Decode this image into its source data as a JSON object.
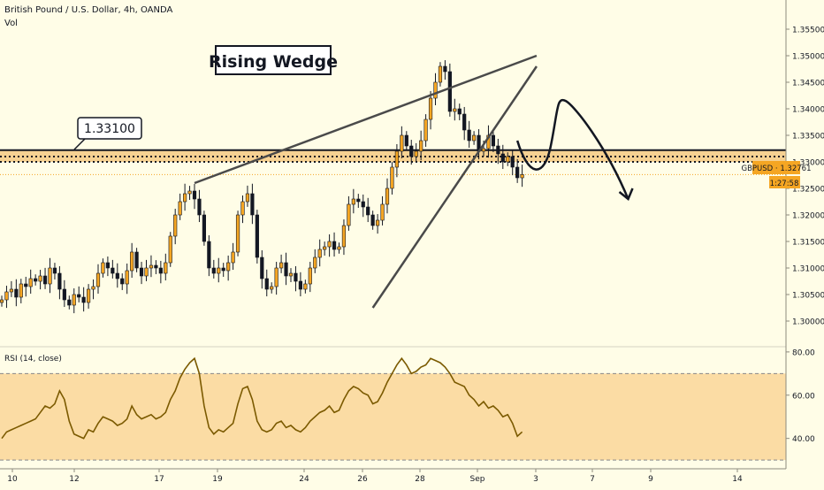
{
  "header": {
    "symbol_line": "British Pound / U.S. Dollar, 4h, OANDA",
    "vol_label": "Vol"
  },
  "annotations": {
    "pattern_title": "Rising Wedge",
    "level_callout": "1.33100"
  },
  "price_tag": {
    "label": "GBPUSD · 1.32761",
    "countdown": "1:27:58"
  },
  "rsi_panel": {
    "label": "RSI (14, close)"
  },
  "colors": {
    "background": "#fffde7",
    "up_candle": "#f5a623",
    "down_candle": "#131722",
    "line": "#4a4a4a",
    "zone": "#f5c983",
    "rsi_line": "#7b5a00",
    "rsi_band": "#fbd89c",
    "price_tag": "#f5a623"
  },
  "chart_data": [
    {
      "type": "candlestick",
      "title": "British Pound / U.S. Dollar, 4h, OANDA",
      "symbol": "GBPUSD",
      "last_price": 1.32761,
      "y_ticks": [
        1.355,
        1.35,
        1.345,
        1.34,
        1.335,
        1.33,
        1.325,
        1.32,
        1.315,
        1.31,
        1.305,
        1.3
      ],
      "y_tick_labels": [
        "1.35500",
        "1.35000",
        "1.34500",
        "1.34000",
        "1.33500",
        "1.33000",
        "1.32500",
        "1.32000",
        "1.31500",
        "1.31000",
        "1.30500",
        "1.30000"
      ],
      "ylim": [
        1.2955,
        1.3605
      ],
      "x_tick_labels": [
        "10",
        "12",
        "17",
        "19",
        "24",
        "26",
        "28",
        "Sep",
        "3",
        "7",
        "9",
        "14"
      ],
      "closes": [
        1.304,
        1.3055,
        1.306,
        1.3045,
        1.307,
        1.3065,
        1.308,
        1.3075,
        1.3085,
        1.307,
        1.31,
        1.309,
        1.306,
        1.304,
        1.303,
        1.305,
        1.3045,
        1.3035,
        1.306,
        1.3065,
        1.309,
        1.311,
        1.31,
        1.309,
        1.308,
        1.307,
        1.3095,
        1.313,
        1.31,
        1.3085,
        1.31,
        1.3105,
        1.31,
        1.309,
        1.311,
        1.316,
        1.32,
        1.3225,
        1.324,
        1.3245,
        1.323,
        1.32,
        1.315,
        1.31,
        1.309,
        1.31,
        1.3095,
        1.311,
        1.313,
        1.32,
        1.3225,
        1.324,
        1.32,
        1.312,
        1.308,
        1.306,
        1.3065,
        1.31,
        1.311,
        1.3085,
        1.309,
        1.3075,
        1.306,
        1.307,
        1.31,
        1.312,
        1.3135,
        1.314,
        1.315,
        1.3135,
        1.314,
        1.318,
        1.322,
        1.323,
        1.3225,
        1.3215,
        1.32,
        1.318,
        1.319,
        1.322,
        1.325,
        1.329,
        1.332,
        1.335,
        1.333,
        1.331,
        1.332,
        1.334,
        1.338,
        1.342,
        1.345,
        1.348,
        1.347,
        1.3395,
        1.34,
        1.339,
        1.336,
        1.334,
        1.335,
        1.332,
        1.3325,
        1.335,
        1.333,
        1.3315,
        1.33,
        1.331,
        1.329,
        1.327,
        1.3276
      ],
      "horizontal_levels": [
        1.3322,
        1.331,
        1.33
      ],
      "wedge_lines": [
        {
          "from": [
            40,
            1.326
          ],
          "to": [
            111,
            1.35
          ]
        },
        {
          "from": [
            77,
            1.3025
          ],
          "to": [
            111,
            1.348
          ]
        }
      ],
      "projection": {
        "from": [
          107,
          1.334
        ],
        "peak": [
          117,
          1.3415
        ],
        "to": [
          130,
          1.323
        ]
      }
    },
    {
      "type": "line",
      "title": "RSI (14, close)",
      "y_ticks": [
        80,
        60,
        40
      ],
      "y_tick_labels": [
        "80.00",
        "60.00",
        "40.00"
      ],
      "ylim": [
        28,
        82
      ],
      "band": [
        30,
        70
      ],
      "values": [
        40,
        43,
        44,
        45,
        46,
        47,
        48,
        49,
        52,
        55,
        54,
        56,
        62,
        58,
        48,
        42,
        41,
        40,
        44,
        43,
        47,
        50,
        49,
        48,
        46,
        47,
        49,
        55,
        51,
        49,
        50,
        51,
        49,
        50,
        52,
        58,
        62,
        68,
        72,
        75,
        77,
        70,
        55,
        45,
        42,
        44,
        43,
        45,
        47,
        56,
        63,
        64,
        58,
        48,
        44,
        43,
        44,
        47,
        48,
        45,
        46,
        44,
        43,
        45,
        48,
        50,
        52,
        53,
        55,
        52,
        53,
        58,
        62,
        64,
        63,
        61,
        60,
        56,
        57,
        61,
        66,
        70,
        74,
        77,
        74,
        70,
        71,
        73,
        74,
        77,
        76,
        75,
        73,
        70,
        66,
        65,
        64,
        60,
        58,
        55,
        57,
        54,
        55,
        53,
        50,
        51,
        47,
        41,
        43
      ]
    }
  ]
}
